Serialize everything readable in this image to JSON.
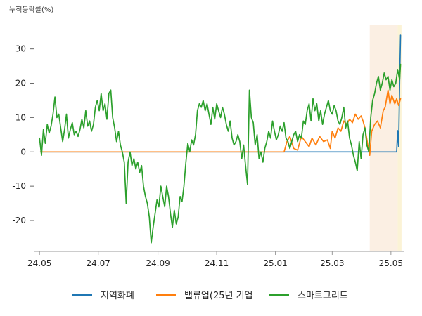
{
  "chart_data": {
    "type": "line",
    "unit_label": "누적등락률(%)",
    "xlabel": "",
    "ylabel": "",
    "x_ticks": [
      "24.05",
      "24.07",
      "24.09",
      "24.11",
      "25.01",
      "25.03",
      "25.05"
    ],
    "x_tick_dates": [
      "2024-05-01",
      "2024-07-01",
      "2024-09-01",
      "2024-11-01",
      "2025-01-01",
      "2025-03-01",
      "2025-05-01"
    ],
    "x_range": [
      "2024-04-25",
      "2025-05-15"
    ],
    "y_ticks": [
      30,
      20,
      10,
      0,
      -10,
      -20
    ],
    "ylim": [
      -29,
      37.5
    ],
    "grid": false,
    "legend_position": "bottom",
    "highlight_ranges": [
      {
        "start": "2025-04-09",
        "end": "2025-05-08",
        "color": "#fbefe3"
      },
      {
        "start": "2025-05-08",
        "end": "2025-05-12",
        "color": "#fbf3d6"
      }
    ],
    "series": [
      {
        "name": "지역화폐",
        "color": "#1f77b4",
        "points": [
          [
            "2024-05-02",
            0
          ],
          [
            "2024-08-01",
            0
          ],
          [
            "2024-11-01",
            0
          ],
          [
            "2025-01-08",
            0
          ],
          [
            "2025-02-01",
            0
          ],
          [
            "2025-03-01",
            0
          ],
          [
            "2025-04-01",
            0
          ],
          [
            "2025-05-07",
            0
          ],
          [
            "2025-05-08",
            6.2
          ],
          [
            "2025-05-09",
            1.5
          ],
          [
            "2025-05-10",
            20
          ],
          [
            "2025-05-11",
            34
          ]
        ]
      },
      {
        "name": "밸류업(25년 기업",
        "color": "#ff7f0e",
        "points": [
          [
            "2024-05-02",
            0
          ],
          [
            "2024-08-01",
            0
          ],
          [
            "2024-11-01",
            0
          ],
          [
            "2025-01-10",
            0
          ],
          [
            "2025-01-13",
            3
          ],
          [
            "2025-01-16",
            4.5
          ],
          [
            "2025-01-20",
            1
          ],
          [
            "2025-01-24",
            0.5
          ],
          [
            "2025-01-28",
            4.5
          ],
          [
            "2025-02-01",
            3
          ],
          [
            "2025-02-05",
            1.5
          ],
          [
            "2025-02-08",
            4
          ],
          [
            "2025-02-12",
            2
          ],
          [
            "2025-02-16",
            4.5
          ],
          [
            "2025-02-20",
            3
          ],
          [
            "2025-02-24",
            3.5
          ],
          [
            "2025-02-27",
            1
          ],
          [
            "2025-03-01",
            6
          ],
          [
            "2025-03-04",
            4
          ],
          [
            "2025-03-07",
            7
          ],
          [
            "2025-03-10",
            6
          ],
          [
            "2025-03-13",
            9
          ],
          [
            "2025-03-16",
            8
          ],
          [
            "2025-03-19",
            9.5
          ],
          [
            "2025-03-22",
            8.5
          ],
          [
            "2025-03-25",
            11
          ],
          [
            "2025-03-28",
            9.5
          ],
          [
            "2025-03-31",
            10.5
          ],
          [
            "2025-04-02",
            9
          ],
          [
            "2025-04-04",
            7
          ],
          [
            "2025-04-07",
            2
          ],
          [
            "2025-04-09",
            -1
          ],
          [
            "2025-04-11",
            6
          ],
          [
            "2025-04-14",
            8
          ],
          [
            "2025-04-17",
            9
          ],
          [
            "2025-04-20",
            7
          ],
          [
            "2025-04-23",
            12
          ],
          [
            "2025-04-25",
            13
          ],
          [
            "2025-04-28",
            18
          ],
          [
            "2025-04-30",
            14
          ],
          [
            "2025-05-02",
            16.5
          ],
          [
            "2025-05-05",
            14
          ],
          [
            "2025-05-07",
            15.5
          ],
          [
            "2025-05-09",
            13.5
          ],
          [
            "2025-05-11",
            15.5
          ]
        ]
      },
      {
        "name": "스마트그리드",
        "color": "#2ca02c",
        "points": [
          [
            "2024-05-01",
            4
          ],
          [
            "2024-05-03",
            -1
          ],
          [
            "2024-05-05",
            6.5
          ],
          [
            "2024-05-07",
            2.5
          ],
          [
            "2024-05-09",
            8
          ],
          [
            "2024-05-11",
            5.5
          ],
          [
            "2024-05-13",
            7.5
          ],
          [
            "2024-05-15",
            11
          ],
          [
            "2024-05-17",
            16
          ],
          [
            "2024-05-19",
            10
          ],
          [
            "2024-05-21",
            11
          ],
          [
            "2024-05-23",
            7
          ],
          [
            "2024-05-25",
            3
          ],
          [
            "2024-05-27",
            6.5
          ],
          [
            "2024-05-29",
            11
          ],
          [
            "2024-05-31",
            4
          ],
          [
            "2024-06-02",
            6.5
          ],
          [
            "2024-06-04",
            8.5
          ],
          [
            "2024-06-06",
            5
          ],
          [
            "2024-06-08",
            6
          ],
          [
            "2024-06-10",
            4.5
          ],
          [
            "2024-06-12",
            6.5
          ],
          [
            "2024-06-14",
            9.5
          ],
          [
            "2024-06-16",
            7
          ],
          [
            "2024-06-18",
            12
          ],
          [
            "2024-06-20",
            7.5
          ],
          [
            "2024-06-22",
            9
          ],
          [
            "2024-06-24",
            6
          ],
          [
            "2024-06-26",
            8
          ],
          [
            "2024-06-28",
            13
          ],
          [
            "2024-06-30",
            15
          ],
          [
            "2024-07-02",
            12
          ],
          [
            "2024-07-04",
            17
          ],
          [
            "2024-07-06",
            12
          ],
          [
            "2024-07-08",
            14
          ],
          [
            "2024-07-10",
            9.5
          ],
          [
            "2024-07-12",
            17
          ],
          [
            "2024-07-14",
            18
          ],
          [
            "2024-07-16",
            10
          ],
          [
            "2024-07-18",
            7
          ],
          [
            "2024-07-20",
            3
          ],
          [
            "2024-07-22",
            6
          ],
          [
            "2024-07-24",
            2
          ],
          [
            "2024-07-26",
            0
          ],
          [
            "2024-07-28",
            -3
          ],
          [
            "2024-07-30",
            -15
          ],
          [
            "2024-08-01",
            -3
          ],
          [
            "2024-08-03",
            0
          ],
          [
            "2024-08-05",
            -4
          ],
          [
            "2024-08-07",
            -2
          ],
          [
            "2024-08-09",
            -5
          ],
          [
            "2024-08-11",
            -3
          ],
          [
            "2024-08-13",
            -6
          ],
          [
            "2024-08-15",
            -4
          ],
          [
            "2024-08-17",
            -10
          ],
          [
            "2024-08-19",
            -13
          ],
          [
            "2024-08-21",
            -15
          ],
          [
            "2024-08-23",
            -19
          ],
          [
            "2024-08-25",
            -26.5
          ],
          [
            "2024-08-27",
            -22
          ],
          [
            "2024-08-29",
            -18
          ],
          [
            "2024-08-31",
            -14
          ],
          [
            "2024-09-02",
            -16
          ],
          [
            "2024-09-04",
            -10
          ],
          [
            "2024-09-06",
            -13
          ],
          [
            "2024-09-08",
            -16
          ],
          [
            "2024-09-10",
            -10
          ],
          [
            "2024-09-12",
            -13
          ],
          [
            "2024-09-14",
            -18
          ],
          [
            "2024-09-16",
            -22
          ],
          [
            "2024-09-18",
            -17
          ],
          [
            "2024-09-20",
            -21
          ],
          [
            "2024-09-22",
            -19
          ],
          [
            "2024-09-24",
            -13
          ],
          [
            "2024-09-26",
            -14.5
          ],
          [
            "2024-09-28",
            -10
          ],
          [
            "2024-09-30",
            -3
          ],
          [
            "2024-10-02",
            2.5
          ],
          [
            "2024-10-04",
            0
          ],
          [
            "2024-10-06",
            3.5
          ],
          [
            "2024-10-08",
            2
          ],
          [
            "2024-10-10",
            5
          ],
          [
            "2024-10-12",
            12
          ],
          [
            "2024-10-14",
            14
          ],
          [
            "2024-10-16",
            13
          ],
          [
            "2024-10-18",
            15
          ],
          [
            "2024-10-20",
            12
          ],
          [
            "2024-10-22",
            14
          ],
          [
            "2024-10-24",
            11
          ],
          [
            "2024-10-26",
            8
          ],
          [
            "2024-10-28",
            13
          ],
          [
            "2024-10-30",
            9.5
          ],
          [
            "2024-11-01",
            14
          ],
          [
            "2024-11-03",
            12
          ],
          [
            "2024-11-05",
            10
          ],
          [
            "2024-11-07",
            13
          ],
          [
            "2024-11-09",
            11
          ],
          [
            "2024-11-11",
            8
          ],
          [
            "2024-11-13",
            6
          ],
          [
            "2024-11-15",
            9
          ],
          [
            "2024-11-17",
            4
          ],
          [
            "2024-11-19",
            2
          ],
          [
            "2024-11-21",
            3
          ],
          [
            "2024-11-23",
            5
          ],
          [
            "2024-11-25",
            3
          ],
          [
            "2024-11-27",
            -2
          ],
          [
            "2024-11-29",
            2
          ],
          [
            "2024-12-01",
            -4
          ],
          [
            "2024-12-03",
            -9.5
          ],
          [
            "2024-12-05",
            18
          ],
          [
            "2024-12-07",
            10
          ],
          [
            "2024-12-09",
            8.5
          ],
          [
            "2024-12-11",
            2
          ],
          [
            "2024-12-13",
            5
          ],
          [
            "2024-12-15",
            -2
          ],
          [
            "2024-12-17",
            0
          ],
          [
            "2024-12-19",
            -3
          ],
          [
            "2024-12-21",
            1
          ],
          [
            "2024-12-23",
            3
          ],
          [
            "2024-12-25",
            6
          ],
          [
            "2024-12-27",
            4
          ],
          [
            "2024-12-29",
            9
          ],
          [
            "2024-12-31",
            6
          ],
          [
            "2025-01-02",
            3.5
          ],
          [
            "2025-01-04",
            5
          ],
          [
            "2025-01-06",
            7.5
          ],
          [
            "2025-01-08",
            6
          ],
          [
            "2025-01-10",
            8.5
          ],
          [
            "2025-01-12",
            4
          ],
          [
            "2025-01-14",
            3
          ],
          [
            "2025-01-16",
            1
          ],
          [
            "2025-01-18",
            3
          ],
          [
            "2025-01-20",
            5
          ],
          [
            "2025-01-22",
            6
          ],
          [
            "2025-01-24",
            3
          ],
          [
            "2025-01-26",
            5
          ],
          [
            "2025-01-28",
            4
          ],
          [
            "2025-01-30",
            9
          ],
          [
            "2025-02-01",
            8
          ],
          [
            "2025-02-03",
            12
          ],
          [
            "2025-02-05",
            14
          ],
          [
            "2025-02-07",
            9
          ],
          [
            "2025-02-09",
            15.5
          ],
          [
            "2025-02-11",
            12
          ],
          [
            "2025-02-13",
            14
          ],
          [
            "2025-02-15",
            9
          ],
          [
            "2025-02-17",
            12
          ],
          [
            "2025-02-19",
            8
          ],
          [
            "2025-02-21",
            11
          ],
          [
            "2025-02-23",
            13
          ],
          [
            "2025-02-25",
            15
          ],
          [
            "2025-02-27",
            12
          ],
          [
            "2025-03-01",
            11
          ],
          [
            "2025-03-03",
            13.5
          ],
          [
            "2025-03-05",
            12
          ],
          [
            "2025-03-07",
            9
          ],
          [
            "2025-03-09",
            8
          ],
          [
            "2025-03-11",
            10
          ],
          [
            "2025-03-13",
            13
          ],
          [
            "2025-03-15",
            7
          ],
          [
            "2025-03-17",
            9
          ],
          [
            "2025-03-19",
            4
          ],
          [
            "2025-03-21",
            2
          ],
          [
            "2025-03-23",
            -1
          ],
          [
            "2025-03-25",
            -3
          ],
          [
            "2025-03-27",
            -5.5
          ],
          [
            "2025-03-29",
            3
          ],
          [
            "2025-03-31",
            -2
          ],
          [
            "2025-04-02",
            5
          ],
          [
            "2025-04-04",
            7
          ],
          [
            "2025-04-06",
            2
          ],
          [
            "2025-04-08",
            0
          ],
          [
            "2025-04-10",
            10
          ],
          [
            "2025-04-12",
            15
          ],
          [
            "2025-04-14",
            17
          ],
          [
            "2025-04-16",
            20
          ],
          [
            "2025-04-18",
            22
          ],
          [
            "2025-04-20",
            18
          ],
          [
            "2025-04-22",
            20
          ],
          [
            "2025-04-24",
            23
          ],
          [
            "2025-04-26",
            21
          ],
          [
            "2025-04-28",
            22
          ],
          [
            "2025-04-30",
            18
          ],
          [
            "2025-05-02",
            21
          ],
          [
            "2025-05-04",
            19
          ],
          [
            "2025-05-06",
            20
          ],
          [
            "2025-05-08",
            24
          ],
          [
            "2025-05-10",
            21
          ],
          [
            "2025-05-11",
            25.5
          ]
        ]
      }
    ]
  }
}
